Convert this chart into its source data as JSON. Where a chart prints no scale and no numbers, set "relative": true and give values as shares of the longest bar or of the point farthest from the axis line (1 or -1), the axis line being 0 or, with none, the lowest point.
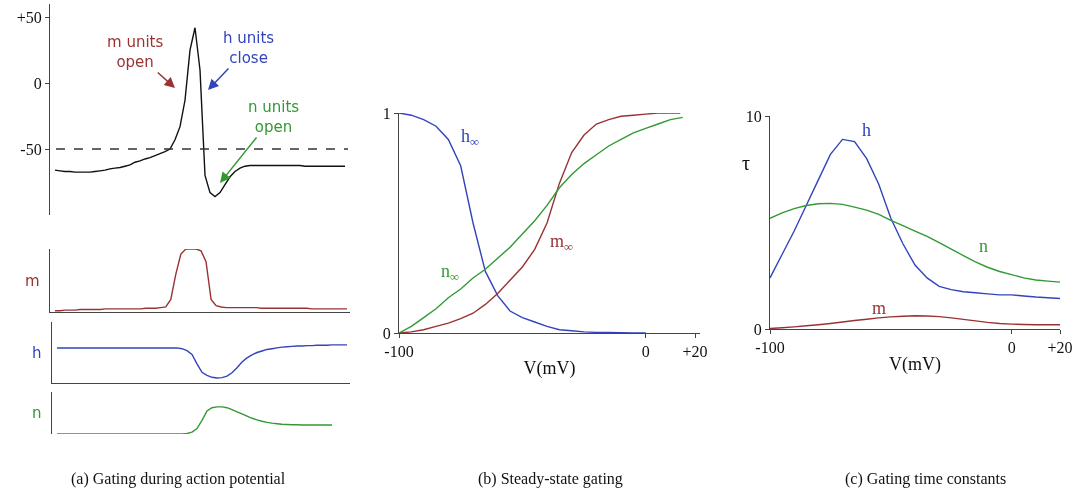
{
  "chart_data": [
    {
      "type": "line",
      "tick_labels": "y",
      "categories": [
        null,
        null,
        null,
        null,
        null,
        null,
        null,
        null,
        null,
        null,
        null,
        null,
        null,
        null,
        null,
        null,
        null,
        null,
        null,
        null,
        null,
        null,
        null,
        null,
        null,
        null,
        null,
        null,
        null,
        null,
        null,
        null,
        null,
        null,
        null,
        null,
        null,
        null,
        null,
        null,
        null,
        null,
        null,
        null,
        null,
        null,
        null,
        null,
        null,
        null,
        null,
        null,
        null,
        null,
        null,
        null,
        null,
        null,
        null
      ],
      "series": [
        {
          "color": "#111111",
          "values": [
            -66,
            -66.5,
            -67,
            -67,
            -67.5,
            -67.5,
            -67.5,
            -67.5,
            -67,
            -66.5,
            -66,
            -65,
            -64.5,
            -64,
            -63,
            -62,
            -60,
            -59,
            -57.5,
            -56.5,
            -55,
            -53.5,
            -52,
            -50,
            -43,
            -33,
            -13,
            25,
            42,
            10,
            -70,
            -83,
            -86,
            -83,
            -77,
            -71,
            -67,
            -64.5,
            -63,
            -62.5,
            -62.5,
            -62.5,
            -62.5,
            -62.5,
            -62.5,
            -62.5,
            -62.5,
            -62.5,
            -62.5,
            -62.5,
            -63,
            -63,
            -63,
            -63,
            -63,
            -63,
            -63,
            -63,
            -63
          ]
        }
      ],
      "ylim": [
        -100,
        60
      ],
      "yticks": [
        {
          "value": 50,
          "label": "+50"
        },
        0,
        -50
      ],
      "ref_lines": [
        {
          "axis": "y",
          "value": -50,
          "color": "#333333",
          "line_style": "dashed"
        }
      ],
      "annotations": [
        "m units\nopen",
        "h units\nclose",
        "n units\nopen",
        "(a) Gating during action potential"
      ]
    },
    {
      "type": "line",
      "relative": true,
      "tick_labels": false,
      "categories": [
        null,
        null,
        null,
        null,
        null,
        null,
        null,
        null,
        null,
        null,
        null,
        null,
        null,
        null,
        null,
        null,
        null,
        null,
        null,
        null,
        null,
        null,
        null,
        null,
        null,
        null,
        null,
        null,
        null,
        null,
        null,
        null,
        null,
        null,
        null,
        null,
        null,
        null,
        null,
        null,
        null,
        null,
        null,
        null,
        null,
        null,
        null,
        null,
        null,
        null,
        null,
        null,
        null,
        null,
        null,
        null,
        null,
        null,
        null
      ],
      "series": [
        {
          "name": "m",
          "color": "#993333",
          "values": [
            0.02,
            0.02,
            0.03,
            0.03,
            0.03,
            0.04,
            0.04,
            0.04,
            0.04,
            0.04,
            0.05,
            0.05,
            0.05,
            0.05,
            0.05,
            0.05,
            0.05,
            0.05,
            0.06,
            0.06,
            0.06,
            0.07,
            0.08,
            0.2,
            0.6,
            0.92,
            1,
            1,
            1,
            0.97,
            0.8,
            0.2,
            0.1,
            0.08,
            0.07,
            0.07,
            0.07,
            0.07,
            0.07,
            0.07,
            0.07,
            0.06,
            0.06,
            0.06,
            0.06,
            0.06,
            0.06,
            0.06,
            0.06,
            0.06,
            0.06,
            0.05,
            0.05,
            0.05,
            0.05,
            0.05,
            0.05,
            0.05,
            0.05
          ]
        }
      ]
    },
    {
      "type": "line",
      "relative": true,
      "tick_labels": false,
      "categories": [
        null,
        null,
        null,
        null,
        null,
        null,
        null,
        null,
        null,
        null,
        null,
        null,
        null,
        null,
        null,
        null,
        null,
        null,
        null,
        null,
        null,
        null,
        null,
        null,
        null,
        null,
        null,
        null,
        null,
        null,
        null,
        null,
        null,
        null,
        null,
        null,
        null,
        null,
        null,
        null,
        null,
        null,
        null,
        null,
        null,
        null,
        null,
        null,
        null,
        null,
        null,
        null,
        null,
        null,
        null,
        null,
        null,
        null,
        null
      ],
      "series": [
        {
          "name": "h",
          "color": "#3344bb",
          "values": [
            0.92,
            0.92,
            0.92,
            0.92,
            0.92,
            0.92,
            0.92,
            0.92,
            0.92,
            0.92,
            0.92,
            0.92,
            0.92,
            0.92,
            0.92,
            0.92,
            0.92,
            0.92,
            0.92,
            0.92,
            0.92,
            0.92,
            0.92,
            0.92,
            0.92,
            0.9,
            0.85,
            0.75,
            0.5,
            0.28,
            0.2,
            0.15,
            0.13,
            0.14,
            0.18,
            0.27,
            0.4,
            0.55,
            0.66,
            0.74,
            0.8,
            0.84,
            0.88,
            0.9,
            0.92,
            0.94,
            0.95,
            0.96,
            0.97,
            0.97,
            0.98,
            0.98,
            0.99,
            0.99,
            0.99,
            1,
            1,
            1,
            1
          ]
        }
      ]
    },
    {
      "type": "line",
      "relative": true,
      "tick_labels": false,
      "categories": [
        null,
        null,
        null,
        null,
        null,
        null,
        null,
        null,
        null,
        null,
        null,
        null,
        null,
        null,
        null,
        null,
        null,
        null,
        null,
        null,
        null,
        null,
        null,
        null,
        null,
        null,
        null,
        null,
        null,
        null,
        null,
        null,
        null,
        null,
        null,
        null,
        null,
        null,
        null,
        null,
        null,
        null,
        null,
        null,
        null,
        null,
        null,
        null,
        null,
        null,
        null,
        null,
        null,
        null,
        null,
        null
      ],
      "series": [
        {
          "name": "n",
          "color": "#339933",
          "values": [
            0,
            0,
            0,
            0,
            0,
            0,
            0,
            0,
            0,
            0,
            0,
            0,
            0,
            0,
            0,
            0,
            0,
            0,
            0,
            0,
            0,
            0,
            0,
            0,
            0,
            0,
            0.02,
            0.07,
            0.2,
            0.5,
            0.85,
            0.97,
            1,
            1,
            0.97,
            0.9,
            0.82,
            0.74,
            0.66,
            0.58,
            0.52,
            0.47,
            0.43,
            0.4,
            0.38,
            0.36,
            0.35,
            0.34,
            0.34,
            0.33,
            0.33,
            0.33,
            0.33,
            0.33,
            0.33,
            0.33
          ]
        }
      ]
    },
    {
      "type": "line",
      "xlabel": "V(mV)",
      "xlim": [
        -100,
        22
      ],
      "xticks": [
        -100,
        0,
        {
          "value": 20,
          "label": "+20"
        }
      ],
      "ylim": [
        0,
        1
      ],
      "yticks": [
        0,
        1
      ],
      "series": [
        {
          "name": "h$_{∞}$",
          "color": "#3344bb",
          "x": [
            -100,
            -95,
            -90,
            -85,
            -80,
            -75,
            -70,
            -65,
            -60,
            -55,
            -50,
            -45,
            -40,
            -35,
            -30,
            -25,
            -20,
            -15,
            -10,
            -5,
            0
          ],
          "values": [
            1,
            0.99,
            0.97,
            0.94,
            0.88,
            0.76,
            0.5,
            0.28,
            0.17,
            0.1,
            0.07,
            0.05,
            0.03,
            0.015,
            0.01,
            0.005,
            0.003,
            0.002,
            0.001,
            0,
            0
          ]
        },
        {
          "name": "m$_{∞}$",
          "color": "#993333",
          "x": [
            -100,
            -95,
            -90,
            -85,
            -80,
            -75,
            -70,
            -65,
            -60,
            -55,
            -50,
            -45,
            -40,
            -35,
            -30,
            -25,
            -20,
            -15,
            -10,
            -5,
            0,
            5,
            10,
            14
          ],
          "values": [
            0,
            0.005,
            0.015,
            0.03,
            0.045,
            0.065,
            0.09,
            0.13,
            0.18,
            0.24,
            0.3,
            0.38,
            0.5,
            0.68,
            0.82,
            0.9,
            0.95,
            0.97,
            0.985,
            0.99,
            0.995,
            1,
            1,
            1
          ]
        },
        {
          "name": "n$_{∞}$",
          "color": "#339933",
          "x": [
            -100,
            -95,
            -90,
            -85,
            -80,
            -75,
            -70,
            -65,
            -60,
            -55,
            -50,
            -45,
            -40,
            -35,
            -30,
            -25,
            -20,
            -15,
            -10,
            -5,
            0,
            5,
            10,
            15
          ],
          "values": [
            0,
            0.03,
            0.07,
            0.11,
            0.16,
            0.2,
            0.25,
            0.29,
            0.34,
            0.39,
            0.45,
            0.51,
            0.58,
            0.66,
            0.72,
            0.77,
            0.81,
            0.85,
            0.88,
            0.91,
            0.93,
            0.95,
            0.97,
            0.98
          ]
        }
      ],
      "annotations": [
        "(b) Steady-state gating"
      ]
    },
    {
      "type": "line",
      "xlabel": "V(mV)",
      "ylabel": "τ",
      "xlim": [
        -100,
        20
      ],
      "xticks": [
        -100,
        0,
        {
          "value": 20,
          "label": "+20"
        }
      ],
      "ylim": [
        0,
        10
      ],
      "yticks": [
        0,
        10
      ],
      "series": [
        {
          "name": "h",
          "color": "#3344bb",
          "x": [
            -100,
            -95,
            -90,
            -85,
            -80,
            -75,
            -70,
            -65,
            -60,
            -55,
            -50,
            -45,
            -40,
            -35,
            -30,
            -25,
            -20,
            -15,
            -10,
            -5,
            0,
            5,
            10,
            15,
            20
          ],
          "values": [
            2.4,
            3.5,
            4.6,
            5.8,
            7,
            8.2,
            8.9,
            8.8,
            8,
            6.8,
            5.2,
            4,
            3,
            2.4,
            2,
            1.85,
            1.75,
            1.7,
            1.65,
            1.6,
            1.6,
            1.55,
            1.5,
            1.47,
            1.43
          ]
        },
        {
          "name": "n",
          "color": "#339933",
          "x": [
            -100,
            -95,
            -90,
            -85,
            -80,
            -75,
            -70,
            -65,
            -60,
            -55,
            -50,
            -45,
            -40,
            -35,
            -30,
            -25,
            -20,
            -15,
            -10,
            -5,
            0,
            5,
            10,
            15,
            20
          ],
          "values": [
            5.2,
            5.45,
            5.65,
            5.8,
            5.88,
            5.9,
            5.85,
            5.72,
            5.58,
            5.38,
            5.1,
            4.85,
            4.6,
            4.35,
            4.05,
            3.75,
            3.45,
            3.15,
            2.9,
            2.7,
            2.55,
            2.4,
            2.3,
            2.25,
            2.2
          ]
        },
        {
          "name": "m",
          "color": "#993333",
          "x": [
            -100,
            -95,
            -90,
            -85,
            -80,
            -75,
            -70,
            -65,
            -60,
            -55,
            -50,
            -45,
            -40,
            -35,
            -30,
            -25,
            -20,
            -15,
            -10,
            -5,
            0,
            5,
            10,
            15,
            20
          ],
          "values": [
            0.02,
            0.06,
            0.1,
            0.15,
            0.2,
            0.26,
            0.33,
            0.4,
            0.46,
            0.52,
            0.57,
            0.6,
            0.62,
            0.61,
            0.58,
            0.52,
            0.45,
            0.38,
            0.31,
            0.26,
            0.23,
            0.21,
            0.2,
            0.2,
            0.2
          ]
        }
      ],
      "annotations": [
        "(c) Gating time constants"
      ]
    }
  ]
}
